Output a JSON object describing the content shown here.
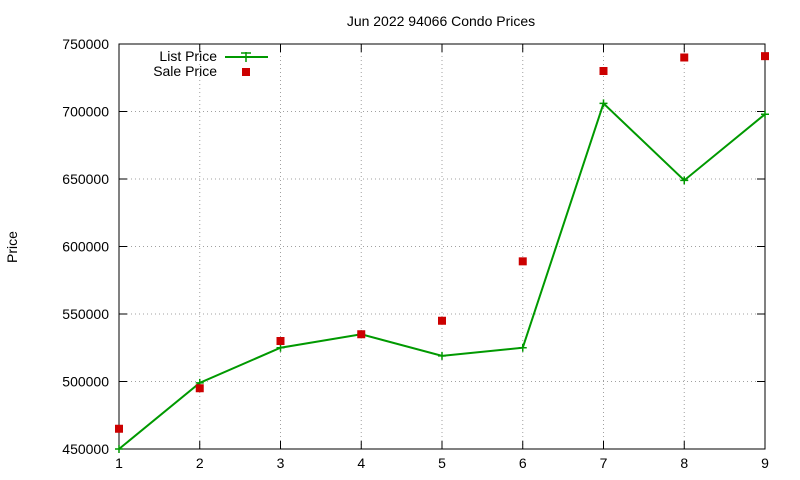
{
  "chart_data": {
    "type": "line",
    "title": "Jun 2022 94066 Condo Prices",
    "xlabel": "",
    "ylabel": "Price",
    "x": [
      1,
      2,
      3,
      4,
      5,
      6,
      7,
      8,
      9
    ],
    "xlim": [
      1,
      9
    ],
    "ylim": [
      450000,
      750000
    ],
    "yticks": [
      450000,
      500000,
      550000,
      600000,
      650000,
      700000,
      750000
    ],
    "xticks": [
      1,
      2,
      3,
      4,
      5,
      6,
      7,
      8,
      9
    ],
    "grid": true,
    "legend_position": "top-left",
    "series": [
      {
        "name": "List Price",
        "kind": "line-plus",
        "color": "#009900",
        "values": [
          450000,
          499000,
          525000,
          535000,
          519000,
          525000,
          706000,
          649000,
          698000
        ]
      },
      {
        "name": "Sale Price",
        "kind": "square-points",
        "color": "#cc0000",
        "values": [
          465000,
          495000,
          530000,
          535000,
          545000,
          589000,
          730000,
          740000,
          741000
        ]
      }
    ]
  }
}
